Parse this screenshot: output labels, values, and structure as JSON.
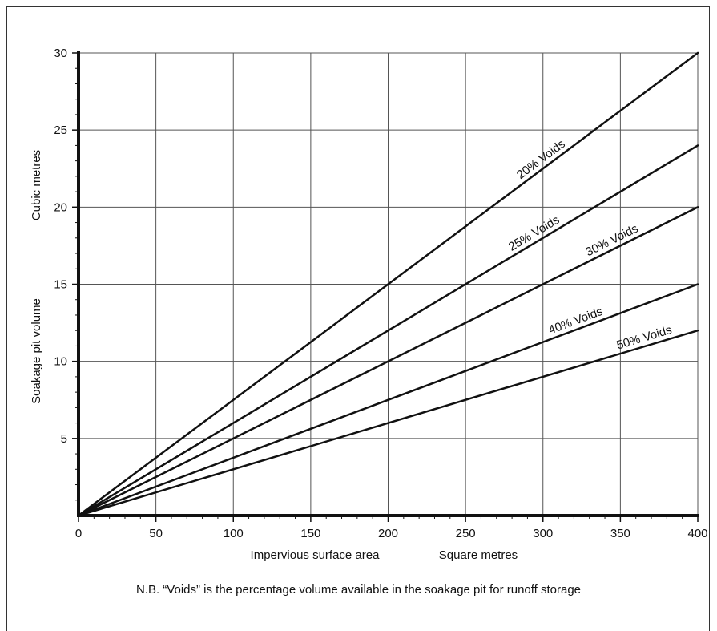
{
  "chart_data": {
    "type": "line",
    "x_unit_label": "Square metres",
    "xlabel": "Impervious surface area",
    "y_unit_label": "Cubic metres",
    "ylabel": "Soakage pit volume",
    "xlim": [
      0,
      400
    ],
    "ylim": [
      0,
      30
    ],
    "x_ticks": [
      0,
      50,
      100,
      150,
      200,
      250,
      300,
      350,
      400
    ],
    "y_ticks": [
      5,
      10,
      15,
      20,
      25,
      30
    ],
    "x_tick_labels": [
      "0",
      "50",
      "100",
      "150",
      "200",
      "250",
      "300",
      "350",
      "400"
    ],
    "y_tick_labels": [
      "5",
      "10",
      "15",
      "20",
      "25",
      "30"
    ],
    "grid": true,
    "series": [
      {
        "name": "20% Voids",
        "x": [
          0,
          400
        ],
        "y": [
          0,
          30
        ],
        "label_at_x": 302
      },
      {
        "name": "25% Voids",
        "x": [
          0,
          400
        ],
        "y": [
          0,
          24
        ],
        "label_at_x": 297
      },
      {
        "name": "30% Voids",
        "x": [
          0,
          400
        ],
        "y": [
          0,
          20
        ],
        "label_at_x": 347
      },
      {
        "name": "40% Voids",
        "x": [
          0,
          400
        ],
        "y": [
          0,
          15
        ],
        "label_at_x": 323
      },
      {
        "name": "50% Voids",
        "x": [
          0,
          400
        ],
        "y": [
          0,
          12
        ],
        "label_at_x": 367
      }
    ],
    "line_color": "#111111",
    "grid_color": "#555555"
  },
  "note": "N.B. “Voids” is the percentage volume available in the soakage pit for runoff storage"
}
